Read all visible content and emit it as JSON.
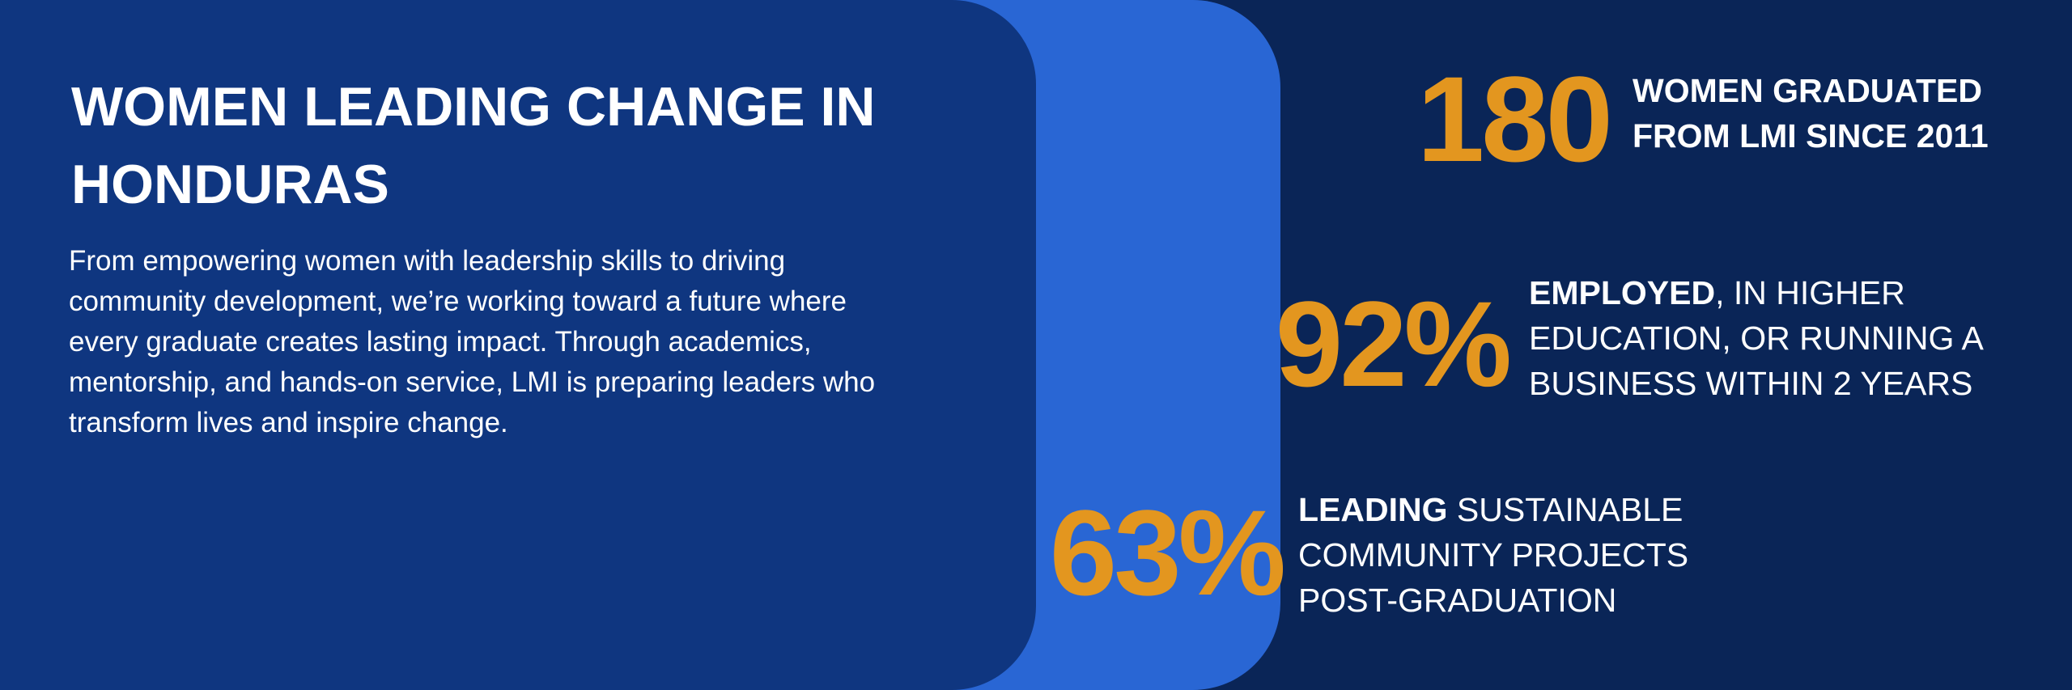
{
  "header": {
    "title": "WOMEN LEADING CHANGE IN HONDURAS",
    "body": "From empowering women with leadership skills to driving community development, we’re working toward a future where every graduate creates lasting impact. Through academics, mentorship, and hands-on service, LMI is preparing leaders who transform lives and inspire change."
  },
  "stats": [
    {
      "number": "180",
      "lead": "WOMEN GRADUATED",
      "text": "FROM LMI SINCE 2011"
    },
    {
      "number": "92%",
      "lead": "EMPLOYED",
      "text": ", IN HIGHER EDUCATION, OR RUNNING A BUSINESS WITHIN 2 YEARS"
    },
    {
      "number": "63%",
      "lead": "LEADING",
      "text": " SUSTAINABLE COMMUNITY PROJECTS POST-GRADUATION"
    }
  ]
}
